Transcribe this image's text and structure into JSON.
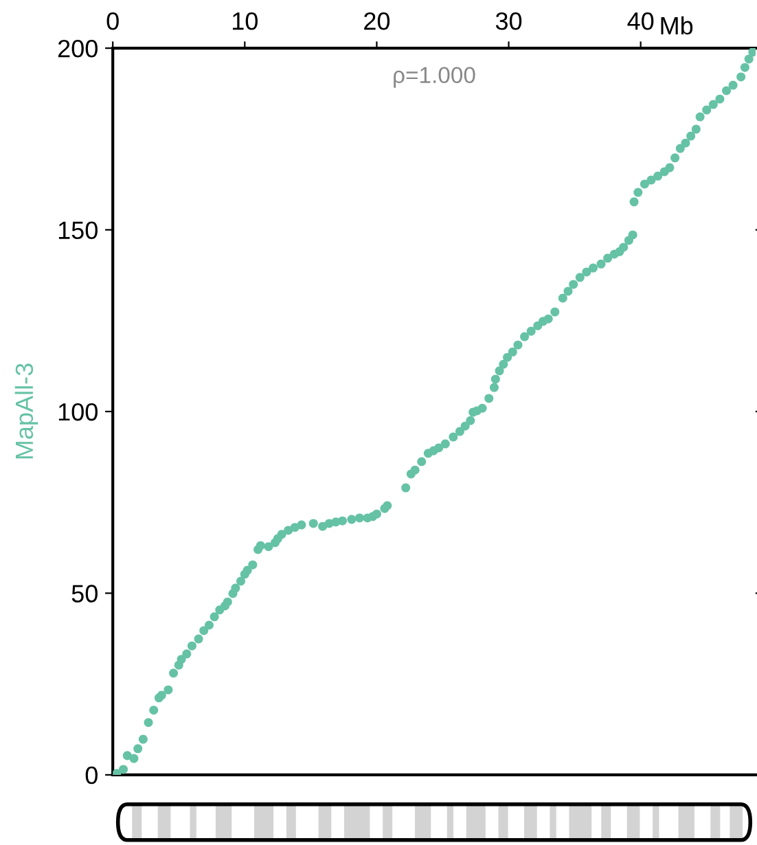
{
  "chart_data": {
    "type": "scatter",
    "xlabel": "Mb",
    "ylabel": "MapAll-3",
    "annotations": [
      "ρ=1.000"
    ],
    "xlim": [
      0,
      48.7
    ],
    "xticks": [
      0,
      10,
      20,
      30,
      40
    ],
    "ylim": [
      0,
      200
    ],
    "yticks": [
      0,
      50,
      100,
      150,
      200
    ],
    "grid": false,
    "marker": "circle",
    "series": [
      {
        "color": "#66c2a5",
        "x": [
          0.3,
          0.8,
          1.1,
          1.6,
          1.9,
          2.3,
          2.7,
          3.1,
          3.5,
          3.7,
          4.2,
          4.6,
          5.0,
          5.2,
          5.6,
          6.0,
          6.5,
          6.9,
          7.3,
          7.7,
          8.1,
          8.5,
          8.7,
          9.1,
          9.3,
          9.7,
          10.0,
          10.2,
          10.6,
          11.0,
          11.2,
          11.8,
          12.3,
          12.5,
          12.8,
          13.3,
          13.8,
          14.3,
          15.2,
          15.9,
          16.4,
          16.9,
          17.4,
          18.1,
          18.7,
          19.3,
          19.7,
          20.0,
          20.6,
          20.8,
          22.2,
          22.6,
          22.9,
          23.4,
          23.9,
          24.3,
          24.7,
          25.2,
          25.8,
          26.3,
          26.7,
          27.1,
          27.3,
          27.6,
          28.0,
          28.5,
          28.9,
          29.0,
          29.3,
          29.6,
          29.9,
          30.3,
          30.7,
          31.2,
          31.7,
          32.2,
          32.6,
          33.0,
          33.5,
          34.1,
          34.5,
          34.9,
          35.4,
          35.9,
          36.4,
          37.0,
          37.5,
          38.0,
          38.4,
          38.7,
          39.1,
          39.4,
          39.5,
          39.8,
          40.3,
          40.8,
          41.3,
          41.8,
          42.2,
          42.6,
          43.0,
          43.4,
          43.8,
          44.2,
          44.5,
          45.0,
          45.5,
          46.0,
          46.5,
          47.0,
          47.6,
          47.9,
          48.2,
          48.5,
          48.6
        ],
        "values": [
          0.4,
          1.5,
          5.3,
          4.5,
          7.2,
          9.8,
          14.4,
          17.8,
          21.2,
          21.9,
          23.4,
          28.0,
          30.2,
          31.8,
          33.3,
          35.5,
          37.4,
          39.7,
          41.2,
          43.5,
          45.4,
          46.5,
          47.6,
          49.9,
          51.4,
          53.3,
          55.2,
          56.3,
          57.8,
          62.0,
          63.1,
          62.8,
          63.9,
          65.0,
          66.2,
          67.3,
          68.1,
          68.8,
          69.2,
          68.4,
          69.2,
          69.6,
          69.9,
          70.3,
          70.7,
          70.7,
          71.1,
          71.8,
          73.3,
          74.1,
          79.0,
          82.8,
          83.9,
          86.2,
          88.5,
          89.2,
          90.0,
          91.1,
          93.0,
          94.5,
          96.0,
          97.5,
          99.8,
          100.2,
          100.9,
          103.6,
          106.6,
          108.9,
          111.2,
          113.0,
          114.9,
          116.4,
          118.3,
          120.6,
          122.1,
          123.6,
          124.8,
          125.5,
          127.4,
          131.2,
          133.1,
          135.0,
          136.9,
          138.4,
          139.5,
          140.6,
          142.2,
          143.3,
          144.0,
          145.2,
          147.1,
          148.6,
          157.7,
          160.3,
          162.6,
          163.7,
          164.8,
          166.0,
          167.1,
          169.8,
          172.4,
          173.9,
          175.8,
          177.7,
          181.1,
          183.0,
          184.5,
          186.0,
          188.3,
          189.8,
          192.1,
          194.7,
          197.0,
          198.9,
          199.6
        ]
      }
    ]
  }
}
